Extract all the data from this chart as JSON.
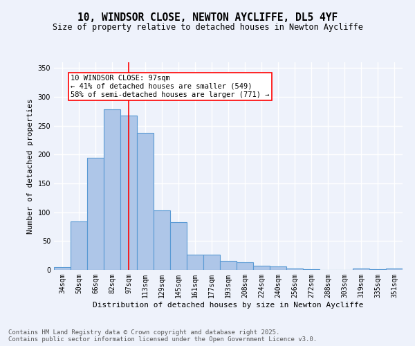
{
  "title_line1": "10, WINDSOR CLOSE, NEWTON AYCLIFFE, DL5 4YF",
  "title_line2": "Size of property relative to detached houses in Newton Aycliffe",
  "xlabel": "Distribution of detached houses by size in Newton Aycliffe",
  "ylabel": "Number of detached properties",
  "categories": [
    "34sqm",
    "50sqm",
    "66sqm",
    "82sqm",
    "97sqm",
    "113sqm",
    "129sqm",
    "145sqm",
    "161sqm",
    "177sqm",
    "193sqm",
    "208sqm",
    "224sqm",
    "240sqm",
    "256sqm",
    "272sqm",
    "288sqm",
    "303sqm",
    "319sqm",
    "335sqm",
    "351sqm"
  ],
  "values": [
    5,
    84,
    195,
    278,
    268,
    238,
    103,
    83,
    27,
    27,
    16,
    13,
    7,
    6,
    3,
    1,
    0,
    0,
    3,
    1,
    3
  ],
  "bar_color": "#aec6e8",
  "bar_edge_color": "#5a9ad4",
  "highlight_index": 4,
  "annotation_text": "10 WINDSOR CLOSE: 97sqm\n← 41% of detached houses are smaller (549)\n58% of semi-detached houses are larger (771) →",
  "annotation_box_color": "white",
  "annotation_box_edge_color": "red",
  "vline_color": "red",
  "ylim": [
    0,
    360
  ],
  "yticks": [
    0,
    50,
    100,
    150,
    200,
    250,
    300,
    350
  ],
  "background_color": "#eef2fb",
  "grid_color": "white",
  "footer_text": "Contains HM Land Registry data © Crown copyright and database right 2025.\nContains public sector information licensed under the Open Government Licence v3.0.",
  "title_fontsize": 10.5,
  "subtitle_fontsize": 8.5,
  "axis_label_fontsize": 8,
  "tick_fontsize": 7,
  "annotation_fontsize": 7.5,
  "footer_fontsize": 6.5
}
